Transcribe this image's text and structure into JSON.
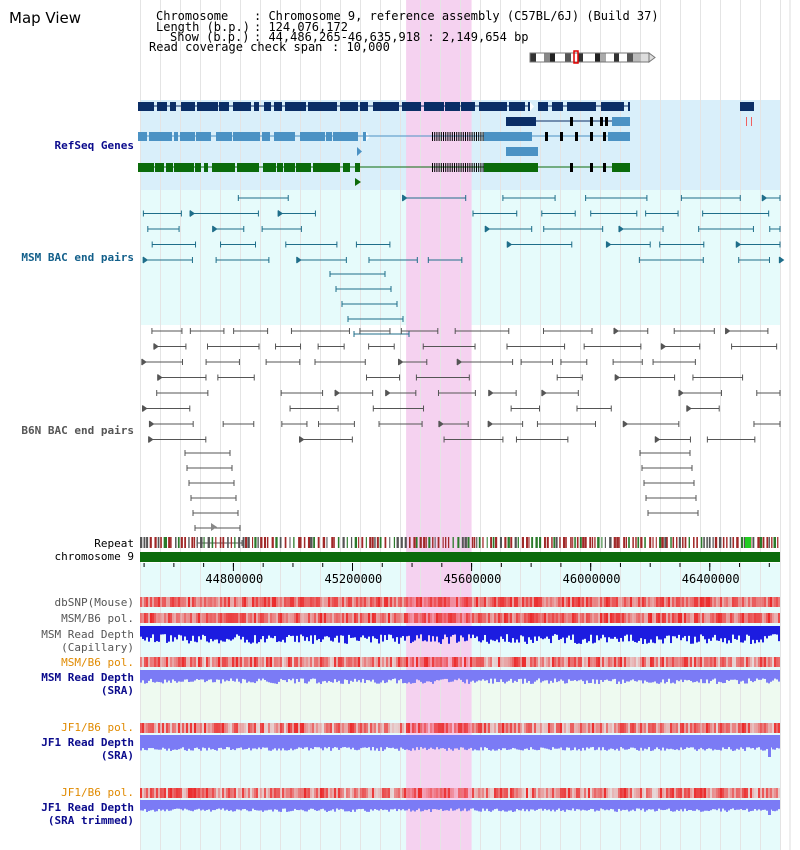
{
  "title": "Map View",
  "info": {
    "chromosome_key": "Chromosome",
    "chromosome_value": ": Chromosome 9, reference assembly (C57BL/6J) (Build 37)",
    "length_key": "Length (b.p.)",
    "length_value": ": 124,076,172",
    "show_key": "Show (b.p.)",
    "show_value": ": 44,486,265-46,635,918 : 2,149,654 bp",
    "coverage_key": "Read coverage check span",
    "coverage_value": ": 10,000"
  },
  "tracks": {
    "refseq": "RefSeq Genes",
    "msm_bac": "MSM BAC end pairs",
    "b6n_bac": "B6N BAC end pairs",
    "repeat": "Repeat",
    "chromosome": "chromosome 9",
    "dbsnp": "dbSNP(Mouse)",
    "msm_b6_pol_1": "MSM/B6 pol.",
    "msm_depth_cap_1": "MSM Read Depth",
    "msm_depth_cap_2": "(Capillary)",
    "msm_b6_pol_2": "MSM/B6 pol.",
    "msm_depth_sra_1": "MSM Read Depth",
    "msm_depth_sra_2": "(SRA)",
    "jf1_b6_pol_1": "JF1/B6 pol.",
    "jf1_depth_sra_1": "JF1 Read Depth",
    "jf1_depth_sra_2": "(SRA)",
    "jf1_b6_pol_2": "JF1/B6 pol.",
    "jf1_depth_trim_1": "JF1 Read Depth",
    "jf1_depth_trim_2": "(SRA trimmed)"
  },
  "axis": {
    "ticks": [
      "44800000",
      "45200000",
      "45600000",
      "46000000",
      "46400000"
    ],
    "view_start": 44486265,
    "view_end": 46635918,
    "highlight_start": 45380000,
    "highlight_end": 45600000
  },
  "colors": {
    "refseq_navy": "#0b2e66",
    "refseq_blue": "#4b92c4",
    "refseq_green": "#0b6b0b",
    "bac_msm": "#1f6e8a",
    "bac_b6n": "#555555",
    "highlight": "#f5d2f0",
    "track_bg": "#e6fbfb",
    "refseq_bg": "#d9effa",
    "chrom_bar": "#0b6b0b",
    "snp": "#f08080",
    "depth_blue": "#1c1ce0",
    "depth_light": "#7b7bf5",
    "label_orange": "#e08a00",
    "label_navy": "#0a0a8c",
    "label_cyan": "#125f8a"
  }
}
